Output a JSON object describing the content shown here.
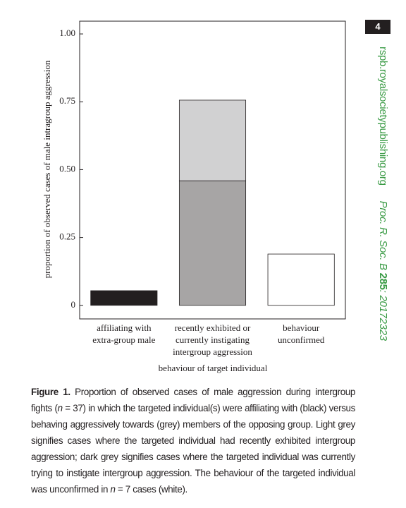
{
  "page_number": "4",
  "journal": {
    "url": "rspb.royalsocietypublishing.org",
    "citation_parts": [
      {
        "text": "Proc. R. Soc. B ",
        "bold": false
      },
      {
        "text": "285",
        "bold": true
      },
      {
        "text": ": 20172323",
        "bold": false
      }
    ]
  },
  "chart_data": {
    "type": "stacked-bar",
    "y_label": "proportion of observed cases of male intragroup aggression",
    "x_label": "behaviour of target individual",
    "categories": [
      [
        "affiliating with",
        "extra-group male"
      ],
      [
        "recently exhibited or",
        "currently instigating",
        "intergroup aggression"
      ],
      [
        "behaviour",
        "unconfirmed"
      ]
    ],
    "series": [
      {
        "color": "#231f20",
        "values": [
          0.054,
          null,
          null
        ]
      },
      {
        "color": "#a7a5a5",
        "values": [
          null,
          0.459,
          null
        ]
      },
      {
        "color": "#d1d1d2",
        "values": [
          null,
          0.297,
          null
        ]
      },
      {
        "color": "#ffffff",
        "values": [
          null,
          null,
          0.189
        ]
      }
    ],
    "ylim": [
      -0.05,
      1.047
    ],
    "yticks": [
      0,
      {
        "value": 0.25,
        "label": "0.25"
      },
      {
        "value": 0.5,
        "label": "0.50"
      },
      {
        "value": 0.75,
        "label": "0.75"
      },
      {
        "value": 1,
        "label": "1.00"
      }
    ]
  },
  "caption": {
    "label": "Figure 1.",
    "segments": [
      {
        "text": " Proportion of observed cases of male aggression during intergroup fights (",
        "italic": false
      },
      {
        "text": "n",
        "italic": true
      },
      {
        "text": " = 37) in which the targeted individual(s) were affiliating with (black) versus behaving aggressively towards (grey) members of the opposing group. Light grey signifies cases where the targeted individual had recently exhibited intergroup aggression; dark grey signifies cases where the targeted individual was currently trying to instigate intergroup aggression. The behaviour of the targeted individual was unconfirmed in ",
        "italic": false
      },
      {
        "text": "n",
        "italic": true
      },
      {
        "text": " = 7 cases (white).",
        "italic": false
      }
    ]
  }
}
